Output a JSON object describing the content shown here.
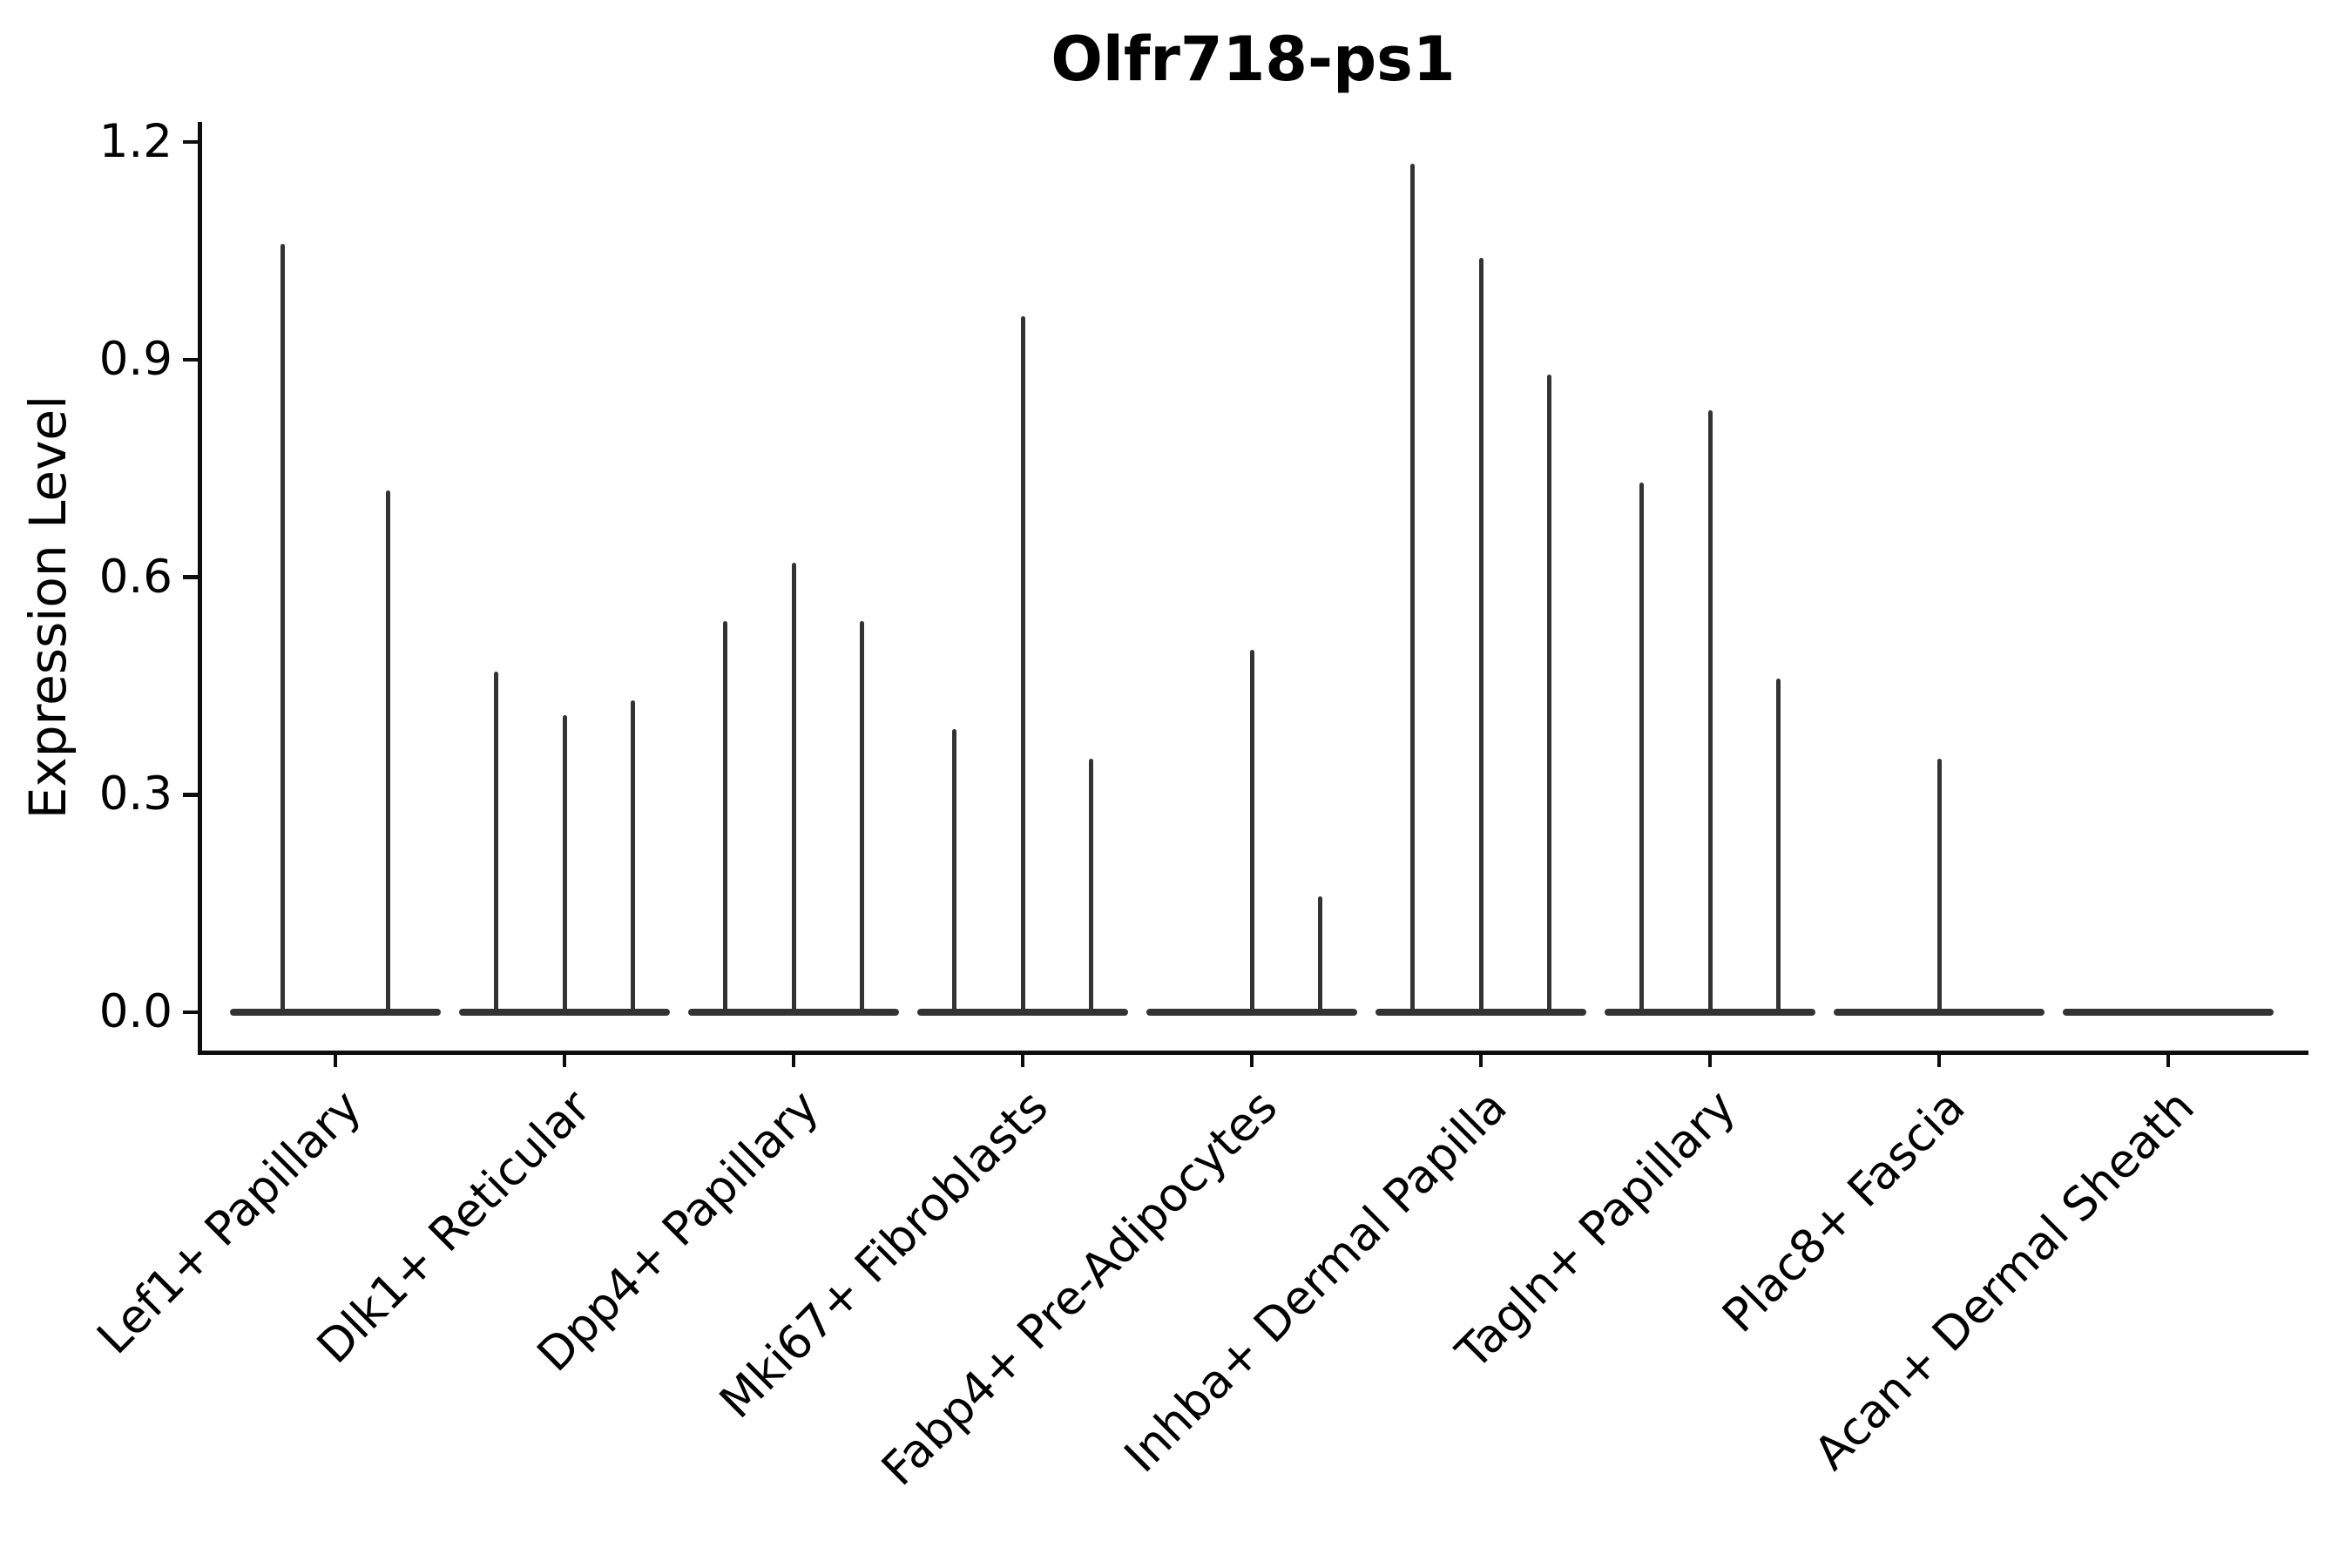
{
  "chart_data": {
    "type": "violin",
    "title": "Olfr718-ps1",
    "xlabel": "",
    "ylabel": "Expression Level",
    "ylim": [
      -0.057,
      1.23
    ],
    "yticks": [
      0.0,
      0.3,
      0.6,
      0.9,
      1.2
    ],
    "ytick_labels": [
      "0.0",
      "0.3",
      "0.6",
      "0.9",
      "1.2"
    ],
    "grid": false,
    "legend_position": "none",
    "categories": [
      "Lef1+ Papillary",
      "Dlk1+ Reticular",
      "Dpp4+ Papillary",
      "Mki67+ Fibroblasts",
      "Fabp4+ Pre-Adipocytes",
      "Inhba+ Dermal Papilla",
      "Tagln+ Papillary",
      "Plac8+ Fascia",
      "Acan+ Dermal Sheath"
    ],
    "violins": [
      {
        "category": "Lef1+ Papillary",
        "spikes": [
          {
            "offset": -0.23,
            "value": 1.06
          },
          {
            "offset": 0.23,
            "value": 0.72
          }
        ]
      },
      {
        "category": "Dlk1+ Reticular",
        "spikes": [
          {
            "offset": -0.3,
            "value": 0.47
          },
          {
            "offset": 0.0,
            "value": 0.41
          },
          {
            "offset": 0.3,
            "value": 0.43
          }
        ]
      },
      {
        "category": "Dpp4+ Papillary",
        "spikes": [
          {
            "offset": -0.3,
            "value": 0.54
          },
          {
            "offset": 0.0,
            "value": 0.62
          },
          {
            "offset": 0.3,
            "value": 0.54
          }
        ]
      },
      {
        "category": "Mki67+ Fibroblasts",
        "spikes": [
          {
            "offset": -0.3,
            "value": 0.39
          },
          {
            "offset": 0.0,
            "value": 0.96
          },
          {
            "offset": 0.3,
            "value": 0.35
          }
        ]
      },
      {
        "category": "Fabp4+ Pre-Adipocytes",
        "spikes": [
          {
            "offset": 0.0,
            "value": 0.5
          },
          {
            "offset": 0.3,
            "value": 0.16
          }
        ]
      },
      {
        "category": "Inhba+ Dermal Papilla",
        "spikes": [
          {
            "offset": -0.3,
            "value": 1.17
          },
          {
            "offset": 0.0,
            "value": 1.04
          },
          {
            "offset": 0.3,
            "value": 0.88
          }
        ]
      },
      {
        "category": "Tagln+ Papillary",
        "spikes": [
          {
            "offset": -0.3,
            "value": 0.73
          },
          {
            "offset": 0.0,
            "value": 0.83
          },
          {
            "offset": 0.3,
            "value": 0.46
          }
        ]
      },
      {
        "category": "Plac8+ Fascia",
        "spikes": [
          {
            "offset": 0.0,
            "value": 0.35
          }
        ]
      },
      {
        "category": "Acan+ Dermal Sheath",
        "spikes": []
      }
    ],
    "violin_color": "#333333",
    "axis_color": "#0d0d0d",
    "text_color": "#000000",
    "background_color": "#ffffff"
  }
}
